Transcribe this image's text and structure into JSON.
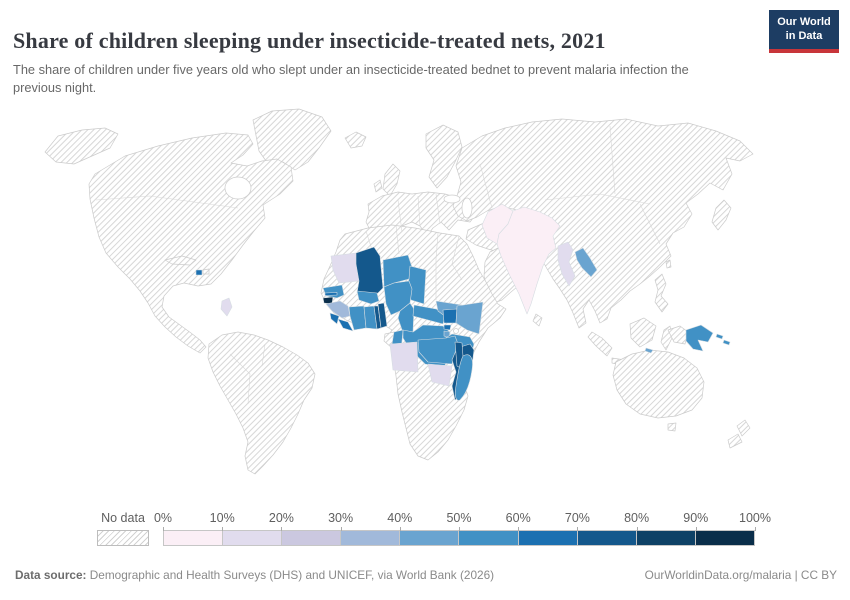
{
  "header": {
    "title": "Share of children sleeping under insecticide-treated nets, 2021",
    "subtitle": "The share of children under five years old who slept under an insecticide-treated bednet to prevent malaria infection the previous night.",
    "logo": {
      "line1": "Our World",
      "line2": "in Data",
      "bg_color": "#1d3d63",
      "accent_color": "#c8353a"
    }
  },
  "legend": {
    "no_data_label": "No data",
    "tick_labels": [
      "0%",
      "10%",
      "20%",
      "30%",
      "40%",
      "50%",
      "60%",
      "70%",
      "80%",
      "90%",
      "100%"
    ],
    "bin_ranges": [
      "0-10%",
      "10-20%",
      "20-30%",
      "30-40%",
      "40-50%",
      "50-60%",
      "60-70%",
      "70-80%",
      "80-90%",
      "90-100%"
    ],
    "bin_colors": [
      "#fbeff6",
      "#e1dcee",
      "#cbc8e0",
      "#a1b9da",
      "#6aa4d0",
      "#4191c5",
      "#1b70b1",
      "#14588c",
      "#0e4166",
      "#0a2e4a"
    ]
  },
  "footer": {
    "source_label": "Data source:",
    "source_text": " Demographic and Health Surveys (DHS) and UNICEF, via World Bank (2026)",
    "link_text": "OurWorldinData.org/malaria | CC BY"
  },
  "map": {
    "ocean_color": "#ffffff",
    "hatch_line_color": "#d6d6d6",
    "border_color": "#cbcbcb",
    "colored_border_color": "#d6dde2"
  },
  "chart_data": {
    "type": "heatmap",
    "subtype": "world-choropleth",
    "title": "Share of children sleeping under insecticide-treated nets, 2021",
    "year": 2021,
    "unit": "% of children under five",
    "legend_position": "bottom",
    "no_data_style": "diagonal-hatch",
    "no_data_regions": [
      "North America",
      "most of South America",
      "Europe",
      "North Africa",
      "Middle East",
      "Russia and Central Asia",
      "East Asia",
      "Southeast Asian islands",
      "Australia and New Zealand",
      "Southern Africa (Namibia, Botswana, South Africa)",
      "Horn of Africa"
    ],
    "countries": [
      {
        "id": "india",
        "name": "India",
        "bin": 0,
        "range": "0-10%"
      },
      {
        "id": "pakistan",
        "name": "Pakistan",
        "bin": 0,
        "range": "0-10%"
      },
      {
        "id": "mauritania",
        "name": "Mauritania",
        "bin": 1,
        "range": "10-20%"
      },
      {
        "id": "angola",
        "name": "Angola",
        "bin": 1,
        "range": "10-20%"
      },
      {
        "id": "zimbabwe",
        "name": "Zimbabwe",
        "bin": 1,
        "range": "10-20%"
      },
      {
        "id": "guyana",
        "name": "Guyana",
        "bin": 1,
        "range": "10-20%"
      },
      {
        "id": "myanmar",
        "name": "Myanmar",
        "bin": 1,
        "range": "10-20%"
      },
      {
        "id": "guinea",
        "name": "Guinea",
        "bin": 3,
        "range": "30-40%"
      },
      {
        "id": "south_sudan",
        "name": "South Sudan",
        "bin": 4,
        "range": "40-50%"
      },
      {
        "id": "kenya",
        "name": "Kenya",
        "bin": 4,
        "range": "40-50%"
      },
      {
        "id": "burundi",
        "name": "Burundi",
        "bin": 4,
        "range": "40-50%"
      },
      {
        "id": "laos",
        "name": "Laos",
        "bin": 4,
        "range": "40-50%"
      },
      {
        "id": "timor_leste",
        "name": "Timor-Leste",
        "bin": 4,
        "range": "40-50%"
      },
      {
        "id": "senegal",
        "name": "Senegal",
        "bin": 5,
        "range": "50-60%"
      },
      {
        "id": "cote_divoire",
        "name": "Cote d'Ivoire",
        "bin": 5,
        "range": "50-60%"
      },
      {
        "id": "burkina_faso",
        "name": "Burkina Faso",
        "bin": 5,
        "range": "50-60%"
      },
      {
        "id": "ghana",
        "name": "Ghana",
        "bin": 5,
        "range": "50-60%"
      },
      {
        "id": "niger",
        "name": "Niger",
        "bin": 5,
        "range": "50-60%"
      },
      {
        "id": "nigeria",
        "name": "Nigeria",
        "bin": 5,
        "range": "50-60%"
      },
      {
        "id": "chad",
        "name": "Chad",
        "bin": 5,
        "range": "50-60%"
      },
      {
        "id": "cameroon",
        "name": "Cameroon",
        "bin": 5,
        "range": "50-60%"
      },
      {
        "id": "central_african_republic",
        "name": "Central African Republic",
        "bin": 5,
        "range": "50-60%"
      },
      {
        "id": "drc",
        "name": "Democratic Republic of Congo",
        "bin": 5,
        "range": "50-60%"
      },
      {
        "id": "congo",
        "name": "Congo",
        "bin": 5,
        "range": "50-60%"
      },
      {
        "id": "tanzania",
        "name": "Tanzania",
        "bin": 5,
        "range": "50-60%"
      },
      {
        "id": "zambia",
        "name": "Zambia",
        "bin": 5,
        "range": "50-60%"
      },
      {
        "id": "madagascar",
        "name": "Madagascar",
        "bin": 5,
        "range": "50-60%"
      },
      {
        "id": "papua_new_guinea",
        "name": "Papua New Guinea",
        "bin": 5,
        "range": "50-60%"
      },
      {
        "id": "solomon_islands",
        "name": "Solomon Islands",
        "bin": 5,
        "range": "50-60%"
      },
      {
        "id": "gambia",
        "name": "Gambia",
        "bin": 6,
        "range": "60-70%"
      },
      {
        "id": "sierra_leone",
        "name": "Sierra Leone",
        "bin": 6,
        "range": "60-70%"
      },
      {
        "id": "liberia",
        "name": "Liberia",
        "bin": 6,
        "range": "60-70%"
      },
      {
        "id": "uganda",
        "name": "Uganda",
        "bin": 6,
        "range": "60-70%"
      },
      {
        "id": "rwanda",
        "name": "Rwanda",
        "bin": 6,
        "range": "60-70%"
      },
      {
        "id": "haiti",
        "name": "Haiti",
        "bin": 6,
        "range": "60-70%"
      },
      {
        "id": "mali",
        "name": "Mali",
        "bin": 7,
        "range": "70-80%"
      },
      {
        "id": "togo",
        "name": "Togo",
        "bin": 7,
        "range": "70-80%"
      },
      {
        "id": "benin",
        "name": "Benin",
        "bin": 7,
        "range": "70-80%"
      },
      {
        "id": "malawi",
        "name": "Malawi",
        "bin": 7,
        "range": "70-80%"
      },
      {
        "id": "mozambique",
        "name": "Mozambique",
        "bin": 7,
        "range": "70-80%"
      },
      {
        "id": "guinea_bissau",
        "name": "Guinea-Bissau",
        "bin": 9,
        "range": "90-100%"
      }
    ]
  }
}
